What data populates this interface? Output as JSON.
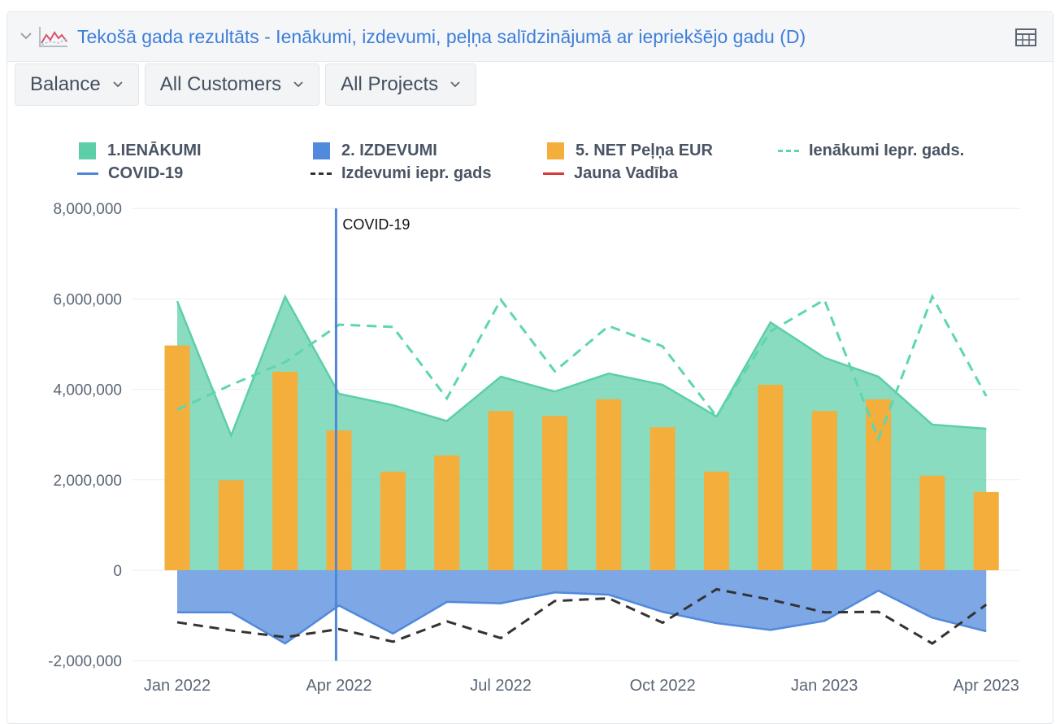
{
  "header": {
    "title": "Tekošā gada rezultāts - Ienākumi, izdevumi, peļņa salīdzinājumā ar iepriekšējo gadu (D)",
    "icons": {
      "collapse": "chevron-down-icon",
      "chart": "line-chart-icon",
      "table": "table-view-icon"
    }
  },
  "filters": [
    {
      "label": "Balance"
    },
    {
      "label": "All Customers"
    },
    {
      "label": "All Projects"
    }
  ],
  "colors": {
    "income": "#5ccfa8",
    "expenses": "#5189dc",
    "net": "#f3ae3c",
    "income_prev": "#5dd6b0",
    "covid": "#4f86d9",
    "expenses_prev": "#333333",
    "management": "#d63b3b"
  },
  "chart_data": {
    "type": "bar",
    "x": [
      "2022-01",
      "2022-02",
      "2022-03",
      "2022-04",
      "2022-05",
      "2022-06",
      "2022-07",
      "2022-08",
      "2022-09",
      "2022-10",
      "2022-11",
      "2022-12",
      "2023-01",
      "2023-02",
      "2023-03",
      "2023-04"
    ],
    "x_tick_labels": [
      "Jan 2022",
      "Apr 2022",
      "Jul 2022",
      "Oct 2022",
      "Jan 2023",
      "Apr 2023"
    ],
    "x_tick_values": [
      "2022-01",
      "2022-04",
      "2022-07",
      "2022-10",
      "2023-01",
      "2023-04"
    ],
    "y_tick_labels": [
      "8,000,000",
      "6,000,000",
      "4,000,000",
      "2,000,000",
      "0",
      "-2,000,000"
    ],
    "ylim": [
      -2000000,
      8000000
    ],
    "grid": true,
    "legend_position": "top",
    "series": [
      {
        "name": "1.IENĀKUMI",
        "type": "area",
        "values": [
          5950000,
          2980000,
          6050000,
          3900000,
          3650000,
          3300000,
          4280000,
          3950000,
          4350000,
          4100000,
          3400000,
          5480000,
          4700000,
          4280000,
          3220000,
          3130000
        ]
      },
      {
        "name": "2. IZDEVUMI",
        "type": "area",
        "values": [
          -930000,
          -930000,
          -1620000,
          -780000,
          -1400000,
          -700000,
          -730000,
          -490000,
          -540000,
          -920000,
          -1170000,
          -1320000,
          -1120000,
          -450000,
          -1050000,
          -1350000
        ]
      },
      {
        "name": "5. NET Peļņa EUR",
        "type": "bar",
        "values": [
          4970000,
          1990000,
          4390000,
          3090000,
          2180000,
          2540000,
          3520000,
          3410000,
          3780000,
          3160000,
          2180000,
          4100000,
          3520000,
          3780000,
          2090000,
          1730000
        ]
      },
      {
        "name": "Ienākumi Iepr. gads.",
        "type": "line",
        "dash": true,
        "values": [
          3550000,
          4100000,
          4600000,
          5430000,
          5380000,
          3800000,
          5980000,
          4400000,
          5400000,
          4950000,
          3400000,
          5280000,
          5980000,
          2900000,
          6050000,
          3850000
        ]
      },
      {
        "name": "Izdevumi iepr. gads",
        "type": "line",
        "dash": true,
        "values": [
          -1150000,
          -1330000,
          -1480000,
          -1300000,
          -1580000,
          -1130000,
          -1500000,
          -680000,
          -620000,
          -1160000,
          -420000,
          -650000,
          -930000,
          -920000,
          -1620000,
          -760000
        ]
      },
      {
        "name": "COVID-19",
        "type": "marker",
        "x": "2022-03",
        "label": "COVID-19"
      },
      {
        "name": "Jauna Vadība",
        "type": "marker"
      }
    ]
  }
}
